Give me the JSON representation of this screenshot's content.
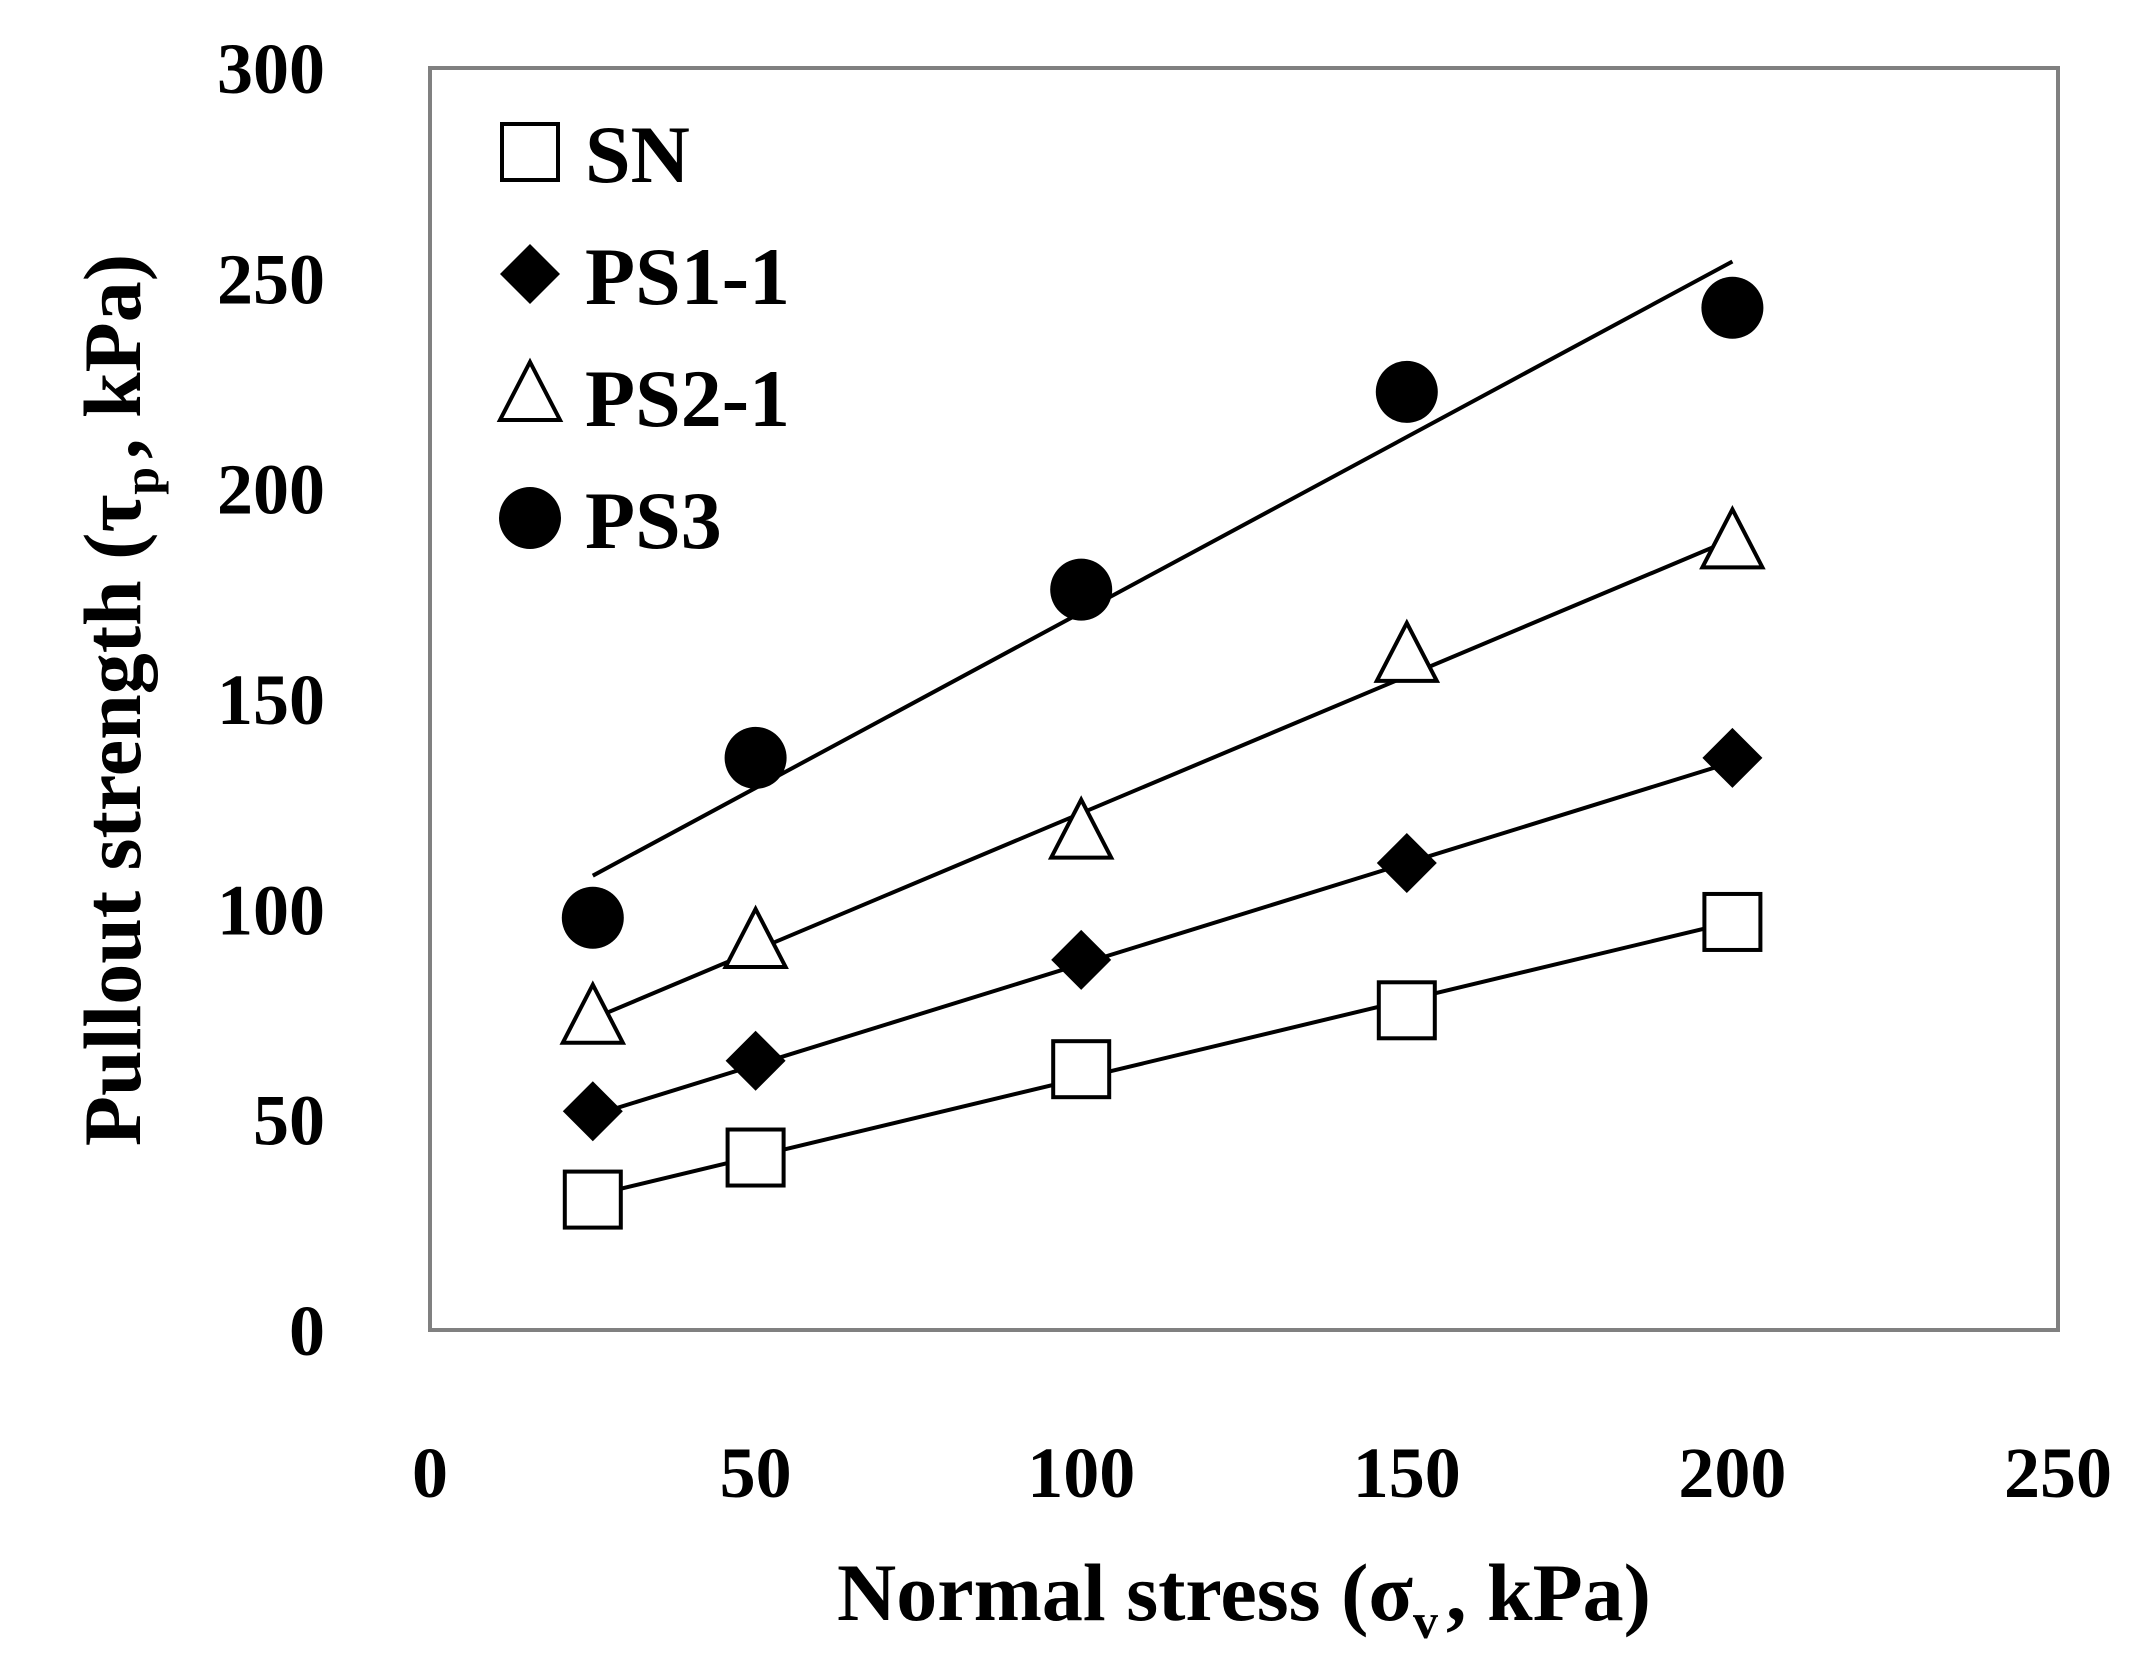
{
  "chart_data": {
    "type": "scatter",
    "title": "",
    "xlabel": {
      "main": "Normal stress (σ",
      "sub": "v",
      "tail": ", kPa)"
    },
    "ylabel": {
      "main": "Pullout strength (τ",
      "sub": "p",
      "tail": ", kPa)"
    },
    "xlim": [
      0,
      250
    ],
    "ylim": [
      0,
      300
    ],
    "x_ticks": [
      "0",
      "50",
      "100",
      "150",
      "200",
      "250"
    ],
    "y_ticks": [
      "0",
      "50",
      "100",
      "150",
      "200",
      "250",
      "300"
    ],
    "grid": false,
    "legend_position": "top-left",
    "series": [
      {
        "name": "SN",
        "marker": "square-open",
        "x": [
          25,
          50,
          100,
          150,
          200
        ],
        "values": [
          31,
          41,
          62,
          76,
          97
        ],
        "fit": {
          "x0": 25,
          "y0": 32,
          "x1": 200,
          "y1": 97
        }
      },
      {
        "name": "PS1-1",
        "marker": "diamond-filled",
        "x": [
          25,
          50,
          100,
          150,
          200
        ],
        "values": [
          52,
          64,
          88,
          111,
          136
        ],
        "fit": {
          "x0": 25,
          "y0": 51,
          "x1": 200,
          "y1": 135
        }
      },
      {
        "name": "PS2-1",
        "marker": "triangle-open",
        "x": [
          25,
          50,
          100,
          150,
          200
        ],
        "values": [
          74,
          92,
          118,
          160,
          187
        ],
        "fit": {
          "x0": 25,
          "y0": 74,
          "x1": 200,
          "y1": 188
        }
      },
      {
        "name": "PS3",
        "marker": "circle-filled",
        "x": [
          25,
          50,
          100,
          150,
          200
        ],
        "values": [
          98,
          136,
          176,
          223,
          243
        ],
        "fit": {
          "x0": 25,
          "y0": 108,
          "x1": 200,
          "y1": 254
        }
      }
    ],
    "colors": {
      "marker": "#000000",
      "line": "#000000",
      "axis": "#808080"
    }
  }
}
